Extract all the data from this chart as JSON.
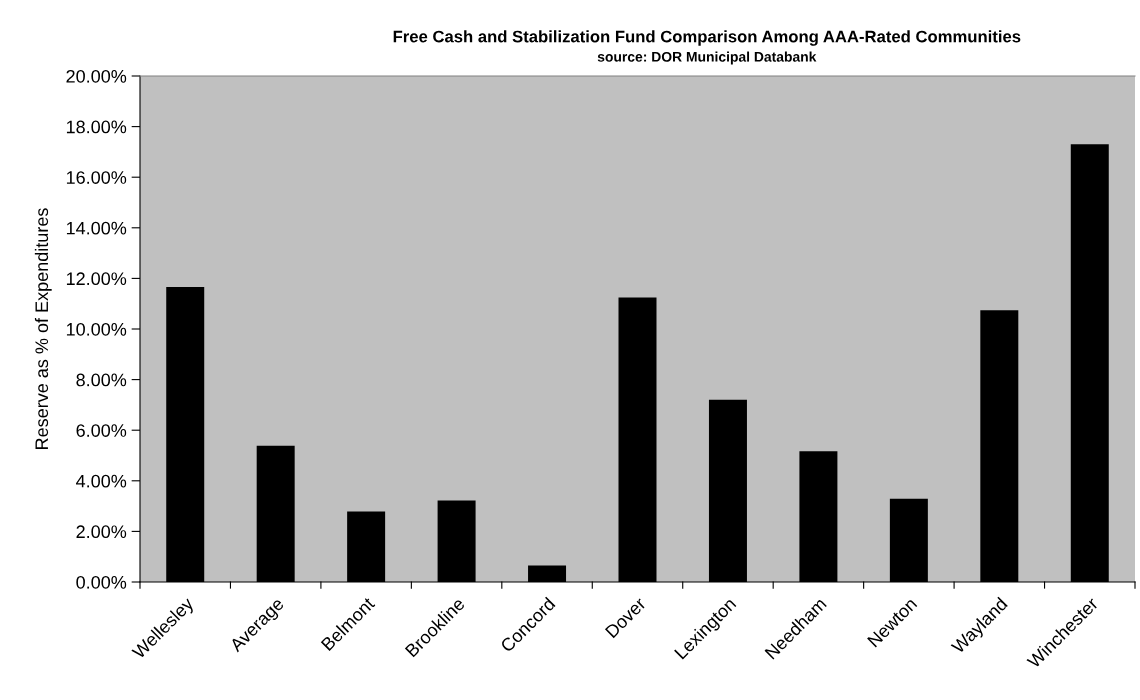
{
  "chart_data": {
    "type": "bar",
    "title": "Free Cash and Stabilization Fund Comparison Among AAA-Rated Communities",
    "subtitle": "source: DOR Municipal Databank",
    "ylabel": "Reserve as % of Expenditures",
    "categories": [
      "Wellesley",
      "Average",
      "Belmont",
      "Brookline",
      "Concord",
      "Dover",
      "Lexington",
      "Needham",
      "Newton",
      "Wayland",
      "Winchester"
    ],
    "values": [
      11.66,
      5.39,
      2.79,
      3.22,
      0.65,
      11.25,
      7.2,
      5.17,
      3.29,
      10.74,
      17.3
    ],
    "color": "#000000",
    "ylim": [
      0,
      20
    ],
    "yticks": [
      {
        "value": 0,
        "label": "0.00%"
      },
      {
        "value": 2,
        "label": "2.00%"
      },
      {
        "value": 4,
        "label": "4.00%"
      },
      {
        "value": 6,
        "label": "6.00%"
      },
      {
        "value": 8,
        "label": "8.00%"
      },
      {
        "value": 10,
        "label": "10.00%"
      },
      {
        "value": 12,
        "label": "12.00%"
      },
      {
        "value": 14,
        "label": "14.00%"
      },
      {
        "value": 16,
        "label": "16.00%"
      },
      {
        "value": 18,
        "label": "18.00%"
      },
      {
        "value": 20,
        "label": "20.00%"
      }
    ],
    "grid": false,
    "legend": false
  }
}
